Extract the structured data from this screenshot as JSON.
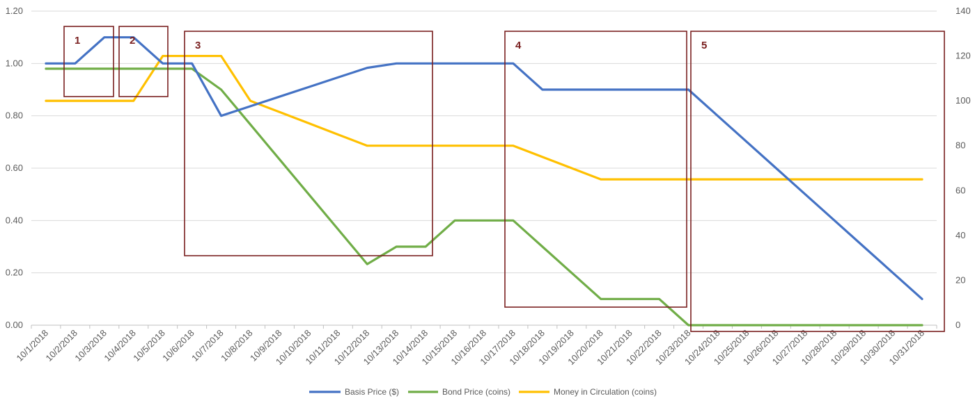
{
  "chart_data": {
    "type": "line",
    "title": "",
    "xlabel": "",
    "ylabel": "",
    "categories": [
      "10/1/2018",
      "10/2/2018",
      "10/3/2018",
      "10/4/2018",
      "10/5/2018",
      "10/6/2018",
      "10/7/2018",
      "10/8/2018",
      "10/9/2018",
      "10/10/2018",
      "10/11/2018",
      "10/12/2018",
      "10/13/2018",
      "10/14/2018",
      "10/15/2018",
      "10/16/2018",
      "10/17/2018",
      "10/18/2018",
      "10/19/2018",
      "10/20/2018",
      "10/21/2018",
      "10/22/2018",
      "10/23/2018",
      "10/24/2018",
      "10/25/2018",
      "10/26/2018",
      "10/27/2018",
      "10/28/2018",
      "10/29/2018",
      "10/30/2018",
      "10/31/2018"
    ],
    "y_left": {
      "range": [
        0,
        1.2
      ],
      "ticks": [
        "0.00",
        "0.20",
        "0.40",
        "0.60",
        "0.80",
        "1.00",
        "1.20"
      ]
    },
    "y_right": {
      "range": [
        0,
        140
      ],
      "ticks": [
        "0",
        "20",
        "40",
        "60",
        "80",
        "100",
        "120",
        "140"
      ]
    },
    "grid": true,
    "legend_position": "bottom",
    "series": [
      {
        "name": "Basis Price ($)",
        "axis": "left",
        "color": "#4472C4",
        "values": [
          1.0,
          1.0,
          1.1,
          1.1,
          1.0,
          1.0,
          0.8,
          0.8367,
          0.8733,
          0.91,
          0.9467,
          0.9833,
          1.0,
          1.0,
          1.0,
          1.0,
          1.0,
          0.9,
          0.9,
          0.9,
          0.9,
          0.9,
          0.9,
          0.8,
          0.7,
          0.6,
          0.5,
          0.4,
          0.3,
          0.2,
          0.1
        ]
      },
      {
        "name": "Bond Price (coins)",
        "axis": "left",
        "color": "#70AD47",
        "values": [
          0.98,
          0.98,
          0.98,
          0.98,
          0.98,
          0.98,
          0.9,
          0.7667,
          0.6333,
          0.5,
          0.3667,
          0.2333,
          0.3,
          0.3,
          0.4,
          0.4,
          0.4,
          0.3,
          0.2,
          0.1,
          0.1,
          0.1,
          0.0,
          0.0,
          0.0,
          0.0,
          0.0,
          0.0,
          0.0,
          0.0,
          0.0
        ]
      },
      {
        "name": "Money in Circulation (coins)",
        "axis": "right",
        "color": "#FFC000",
        "values": [
          100,
          100,
          100,
          100,
          120,
          120,
          120,
          100,
          95,
          90,
          85,
          80,
          80,
          80,
          80,
          80,
          80,
          75,
          70,
          65,
          65,
          65,
          65,
          65,
          65,
          65,
          65,
          65,
          65,
          65,
          65
        ]
      }
    ],
    "annotations": [
      {
        "label": "1",
        "color": "#7a2020"
      },
      {
        "label": "2",
        "color": "#7a2020"
      },
      {
        "label": "3",
        "color": "#7a2020"
      },
      {
        "label": "4",
        "color": "#7a2020"
      },
      {
        "label": "5",
        "color": "#7a2020"
      }
    ]
  }
}
